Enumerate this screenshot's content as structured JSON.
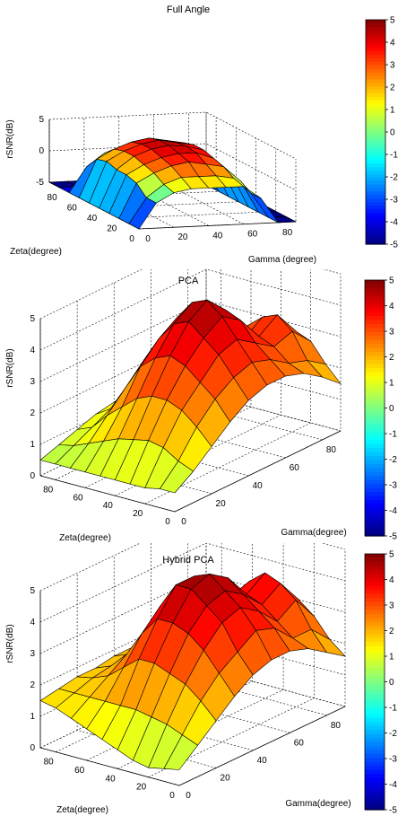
{
  "chart_data": [
    {
      "type": "surface",
      "title": "Full Angle",
      "xlabel": "Zeta(degree)",
      "ylabel": "Gamma (degree)",
      "zlabel": "rSNR(dB)",
      "xlim": [
        0,
        90
      ],
      "ylim": [
        0,
        90
      ],
      "zlim": [
        -5,
        5
      ],
      "x_ticks": [
        "0",
        "20",
        "40",
        "60",
        "80"
      ],
      "y_ticks": [
        "0",
        "20",
        "40",
        "60",
        "80"
      ],
      "z_ticks": [
        "-5",
        "0",
        "5"
      ],
      "colorbar_ticks": [
        "5",
        "4",
        "3",
        "2",
        "1",
        "0",
        "-1",
        "-2",
        "-3",
        "-4",
        "-5"
      ],
      "clim": [
        -5,
        5
      ],
      "grid": true,
      "x": [
        0,
        10,
        20,
        30,
        40,
        50,
        60,
        70,
        80,
        90
      ],
      "y": [
        0,
        10,
        20,
        30,
        40,
        50,
        60,
        70,
        80,
        90
      ],
      "z": [
        [
          -5,
          -1.0,
          0.5,
          1.0,
          1.0,
          1.0,
          1.0,
          -1.0,
          -5,
          -5
        ],
        [
          -5,
          -1.0,
          1.0,
          2.0,
          2.0,
          2.0,
          1.5,
          -1.0,
          -5,
          -5
        ],
        [
          -5,
          0.5,
          2.0,
          3.0,
          3.5,
          3.0,
          2.5,
          0.0,
          -5,
          -5
        ],
        [
          -5,
          1.0,
          2.5,
          3.5,
          4.0,
          4.0,
          3.0,
          0.5,
          -5,
          -5
        ],
        [
          -5,
          1.0,
          3.0,
          4.0,
          4.5,
          4.2,
          3.5,
          0.5,
          -5,
          -5
        ],
        [
          -5,
          1.5,
          3.0,
          4.0,
          4.5,
          4.0,
          3.5,
          0.5,
          -5,
          -5
        ],
        [
          -5,
          1.0,
          2.5,
          3.5,
          4.0,
          3.5,
          3.0,
          0.0,
          -5,
          -5
        ],
        [
          -5,
          -1.0,
          1.0,
          2.0,
          2.0,
          2.0,
          1.0,
          -1.5,
          -5,
          -5
        ],
        [
          -5,
          -5,
          -5,
          -5,
          -5,
          -5,
          -5,
          -5,
          -5,
          -5
        ],
        [
          -5,
          -5,
          -5,
          -5,
          -5,
          -5,
          -5,
          -5,
          -5,
          -5
        ]
      ]
    },
    {
      "type": "surface",
      "title": "PCA",
      "xlabel": "Zeta(degree)",
      "ylabel": "Gamma(degree)",
      "zlabel": "rSNR(dB)",
      "xlim": [
        0,
        90
      ],
      "ylim": [
        0,
        90
      ],
      "zlim": [
        0,
        5
      ],
      "x_ticks": [
        "0",
        "20",
        "40",
        "60",
        "80"
      ],
      "y_ticks": [
        "0",
        "20",
        "40",
        "60",
        "80"
      ],
      "z_ticks": [
        "0",
        "1",
        "2",
        "3",
        "4",
        "5"
      ],
      "colorbar_ticks": [
        "5",
        "4",
        "3",
        "2",
        "1",
        "0",
        "-1",
        "-2",
        "-3",
        "-4",
        "-5"
      ],
      "clim": [
        -5,
        5
      ],
      "grid": true,
      "x": [
        0,
        10,
        20,
        30,
        40,
        50,
        60,
        70,
        80,
        90
      ],
      "y": [
        0,
        10,
        20,
        30,
        40,
        50,
        60,
        70,
        80,
        90
      ],
      "z": [
        [
          0.6,
          1.0,
          1.5,
          2.0,
          2.4,
          2.6,
          2.6,
          2.4,
          2.0,
          1.5
        ],
        [
          0.6,
          1.2,
          2.0,
          2.6,
          3.0,
          3.2,
          3.0,
          2.6,
          2.4,
          2.0
        ],
        [
          0.5,
          1.5,
          2.4,
          3.0,
          3.6,
          3.8,
          3.4,
          3.0,
          3.2,
          2.6
        ],
        [
          0.5,
          1.6,
          2.6,
          3.4,
          4.0,
          4.4,
          4.0,
          3.2,
          3.6,
          2.8
        ],
        [
          0.5,
          1.5,
          2.6,
          3.6,
          4.4,
          4.8,
          4.2,
          3.0,
          3.4,
          2.6
        ],
        [
          0.5,
          1.4,
          2.4,
          3.4,
          4.2,
          4.6,
          4.0,
          2.8,
          3.0,
          2.2
        ],
        [
          0.5,
          1.2,
          2.0,
          3.0,
          3.6,
          4.0,
          3.4,
          2.2,
          2.2,
          1.8
        ],
        [
          0.5,
          1.0,
          1.6,
          2.2,
          2.8,
          3.0,
          2.6,
          1.8,
          1.6,
          1.2
        ],
        [
          0.5,
          0.8,
          1.1,
          1.4,
          1.6,
          1.7,
          1.6,
          1.4,
          1.2,
          1.0
        ],
        [
          0.5,
          0.7,
          0.9,
          1.1,
          1.2,
          1.3,
          1.2,
          1.1,
          1.0,
          0.9
        ]
      ]
    },
    {
      "type": "surface",
      "title": "Hybrid PCA",
      "xlabel": "Zeta(degree)",
      "ylabel": "Gamma(degree)",
      "zlabel": "rSNR(dB)",
      "xlim": [
        0,
        90
      ],
      "ylim": [
        0,
        90
      ],
      "zlim": [
        0,
        5
      ],
      "x_ticks": [
        "0",
        "20",
        "40",
        "60",
        "80"
      ],
      "y_ticks": [
        "0",
        "20",
        "40",
        "60",
        "80"
      ],
      "z_ticks": [
        "0",
        "1",
        "2",
        "3",
        "4",
        "5"
      ],
      "colorbar_ticks": [
        "5",
        "4",
        "3",
        "2",
        "1",
        "0",
        "-1",
        "-2",
        "-3",
        "-4",
        "-5"
      ],
      "clim": [
        -5,
        5
      ],
      "grid": true,
      "x": [
        0,
        10,
        20,
        30,
        40,
        50,
        60,
        70,
        80,
        90
      ],
      "y": [
        0,
        10,
        20,
        30,
        40,
        50,
        60,
        70,
        80,
        90
      ],
      "z": [
        [
          0.5,
          1.0,
          1.5,
          2.0,
          2.4,
          2.6,
          2.6,
          2.4,
          2.0,
          1.6
        ],
        [
          0.4,
          1.2,
          2.0,
          2.6,
          3.0,
          3.4,
          3.2,
          2.6,
          2.6,
          2.0
        ],
        [
          0.3,
          1.4,
          2.4,
          3.2,
          3.8,
          4.0,
          3.6,
          3.0,
          3.4,
          2.6
        ],
        [
          0.4,
          1.5,
          2.6,
          3.6,
          4.2,
          4.4,
          4.0,
          3.4,
          3.8,
          3.0
        ],
        [
          0.6,
          1.6,
          2.8,
          3.8,
          4.6,
          4.8,
          4.4,
          3.6,
          4.0,
          3.2
        ],
        [
          0.8,
          1.6,
          2.8,
          3.8,
          4.6,
          4.6,
          4.2,
          3.4,
          3.6,
          2.8
        ],
        [
          1.0,
          1.6,
          2.4,
          3.2,
          3.8,
          4.0,
          3.6,
          2.8,
          2.8,
          2.2
        ],
        [
          1.2,
          1.6,
          2.0,
          2.4,
          2.8,
          3.0,
          2.8,
          2.2,
          2.0,
          1.6
        ],
        [
          1.4,
          1.6,
          1.8,
          1.9,
          2.0,
          2.0,
          1.9,
          1.7,
          1.5,
          1.2
        ],
        [
          1.5,
          1.6,
          1.7,
          1.7,
          1.8,
          1.8,
          1.7,
          1.5,
          1.3,
          1.0
        ]
      ]
    }
  ]
}
